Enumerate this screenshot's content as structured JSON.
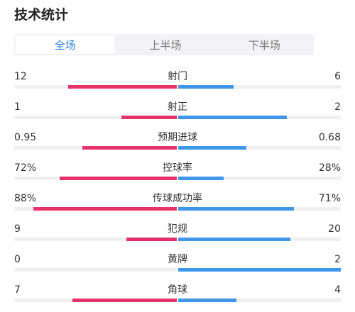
{
  "title": "技术统计",
  "tabs": [
    {
      "label": "全场",
      "active": true
    },
    {
      "label": "上半场",
      "active": false
    },
    {
      "label": "下半场",
      "active": false
    }
  ],
  "colors": {
    "home": "#e8336a",
    "away": "#3e97e8",
    "active_tab": "#2f86e8"
  },
  "stats": [
    {
      "name": "射门",
      "home": "12",
      "away": "6",
      "home_fill": 0.67,
      "away_fill": 0.34
    },
    {
      "name": "射正",
      "home": "1",
      "away": "2",
      "home_fill": 0.34,
      "away_fill": 0.67
    },
    {
      "name": "预期进球",
      "home": "0.95",
      "away": "0.68",
      "home_fill": 0.58,
      "away_fill": 0.42
    },
    {
      "name": "控球率",
      "home": "72%",
      "away": "28%",
      "home_fill": 0.72,
      "away_fill": 0.28
    },
    {
      "name": "传球成功率",
      "home": "88%",
      "away": "71%",
      "home_fill": 0.88,
      "away_fill": 0.71
    },
    {
      "name": "犯规",
      "home": "9",
      "away": "20",
      "home_fill": 0.31,
      "away_fill": 0.69
    },
    {
      "name": "黄牌",
      "home": "0",
      "away": "2",
      "home_fill": 0.0,
      "away_fill": 1.0
    },
    {
      "name": "角球",
      "home": "7",
      "away": "4",
      "home_fill": 0.64,
      "away_fill": 0.36
    }
  ]
}
